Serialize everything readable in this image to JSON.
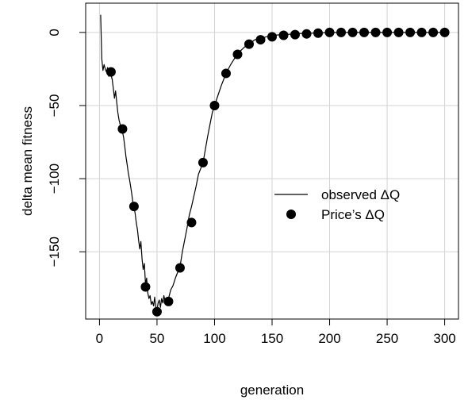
{
  "chart_data": {
    "type": "line",
    "xlabel": "generation",
    "ylabel": "delta mean fitness",
    "xlim": [
      -12,
      312
    ],
    "ylim": [
      -196,
      20
    ],
    "grid": true,
    "x_ticks": [
      0,
      50,
      100,
      150,
      200,
      250,
      300
    ],
    "y_ticks": [
      0,
      -50,
      -100,
      -150
    ],
    "legend": {
      "placement": "right-center",
      "entries": [
        {
          "label": "observed ΔQ",
          "style": "line"
        },
        {
          "label": "Price’s ΔQ",
          "style": "point"
        }
      ]
    },
    "series": [
      {
        "name": "observed ΔQ",
        "style": "line",
        "x": [
          1,
          2,
          3,
          4,
          5,
          6,
          7,
          8,
          9,
          10,
          11,
          12,
          13,
          14,
          15,
          16,
          17,
          18,
          19,
          20,
          21,
          22,
          23,
          24,
          25,
          26,
          27,
          28,
          29,
          30,
          31,
          32,
          33,
          34,
          35,
          36,
          37,
          38,
          39,
          40,
          41,
          42,
          43,
          44,
          45,
          46,
          47,
          48,
          49,
          50,
          51,
          52,
          53,
          54,
          55,
          56,
          57,
          58,
          59,
          60,
          62,
          64,
          66,
          68,
          70,
          72,
          74,
          76,
          78,
          80,
          82,
          84,
          86,
          88,
          90,
          92,
          94,
          96,
          98,
          100,
          103,
          106,
          110,
          114,
          118,
          122,
          126,
          130,
          135,
          140,
          145,
          150,
          160,
          170,
          180,
          190,
          200,
          220,
          240,
          260,
          280,
          300
        ],
        "y": [
          12,
          -18,
          -26,
          -22,
          -25,
          -27,
          -24,
          -30,
          -27,
          -29,
          -32,
          -38,
          -45,
          -40,
          -48,
          -55,
          -60,
          -63,
          -66,
          -68,
          -72,
          -78,
          -85,
          -90,
          -96,
          -100,
          -105,
          -110,
          -116,
          -119,
          -124,
          -130,
          -135,
          -142,
          -148,
          -143,
          -155,
          -162,
          -158,
          -172,
          -168,
          -178,
          -182,
          -180,
          -186,
          -184,
          -187,
          -181,
          -189,
          -190,
          -185,
          -183,
          -188,
          -182,
          -185,
          -180,
          -184,
          -182,
          -181,
          -182,
          -176,
          -173,
          -168,
          -164,
          -160,
          -150,
          -142,
          -134,
          -125,
          -119,
          -112,
          -105,
          -97,
          -93,
          -89,
          -80,
          -71,
          -63,
          -55,
          -50,
          -43,
          -36,
          -28,
          -22,
          -17,
          -13,
          -10,
          -8,
          -5,
          -4,
          -3,
          -2,
          -1.5,
          -1,
          -0.5,
          -0.5,
          0,
          0,
          0,
          0,
          0,
          0
        ]
      },
      {
        "name": "Price’s ΔQ",
        "style": "point",
        "x": [
          10,
          20,
          30,
          40,
          50,
          60,
          70,
          80,
          90,
          100,
          110,
          120,
          130,
          140,
          150,
          160,
          170,
          180,
          190,
          200,
          210,
          220,
          230,
          240,
          250,
          260,
          270,
          280,
          290,
          300
        ],
        "y": [
          -27,
          -66,
          -119,
          -174,
          -191,
          -184,
          -161,
          -130,
          -89,
          -50,
          -28,
          -15,
          -8,
          -5,
          -3,
          -2,
          -1.5,
          -1,
          -0.5,
          0,
          0,
          0,
          0,
          0,
          0,
          0,
          0,
          0,
          0,
          0
        ]
      }
    ]
  }
}
